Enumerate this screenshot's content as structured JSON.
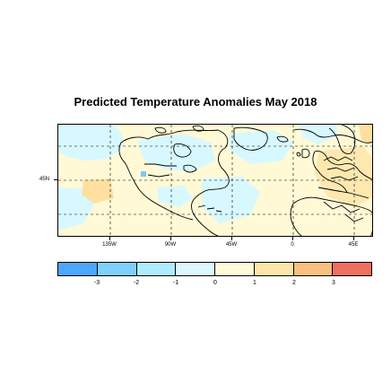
{
  "title": "Predicted Temperature Anomalies May 2018",
  "map": {
    "lat_labels": [
      "45N"
    ],
    "lon_labels": [
      "135W",
      "90W",
      "45W",
      "0",
      "45E"
    ],
    "colors": {
      "ocean_cool": "#d8f8ff",
      "warm_light": "#fff6c8",
      "warm_medium": "#ffe0a0",
      "cool_medium": "#b4eeff",
      "cool_strong": "#7ac8f8",
      "land_outline": "#000000",
      "graticule": "#000000"
    }
  },
  "legend": {
    "colors": [
      "#4da6ff",
      "#80d0ff",
      "#b0ecff",
      "#dcf8ff",
      "#fffbd8",
      "#ffe6a8",
      "#fac080",
      "#f07060"
    ],
    "labels": [
      "-3",
      "-2",
      "-1",
      "0",
      "1",
      "2",
      "3"
    ]
  }
}
